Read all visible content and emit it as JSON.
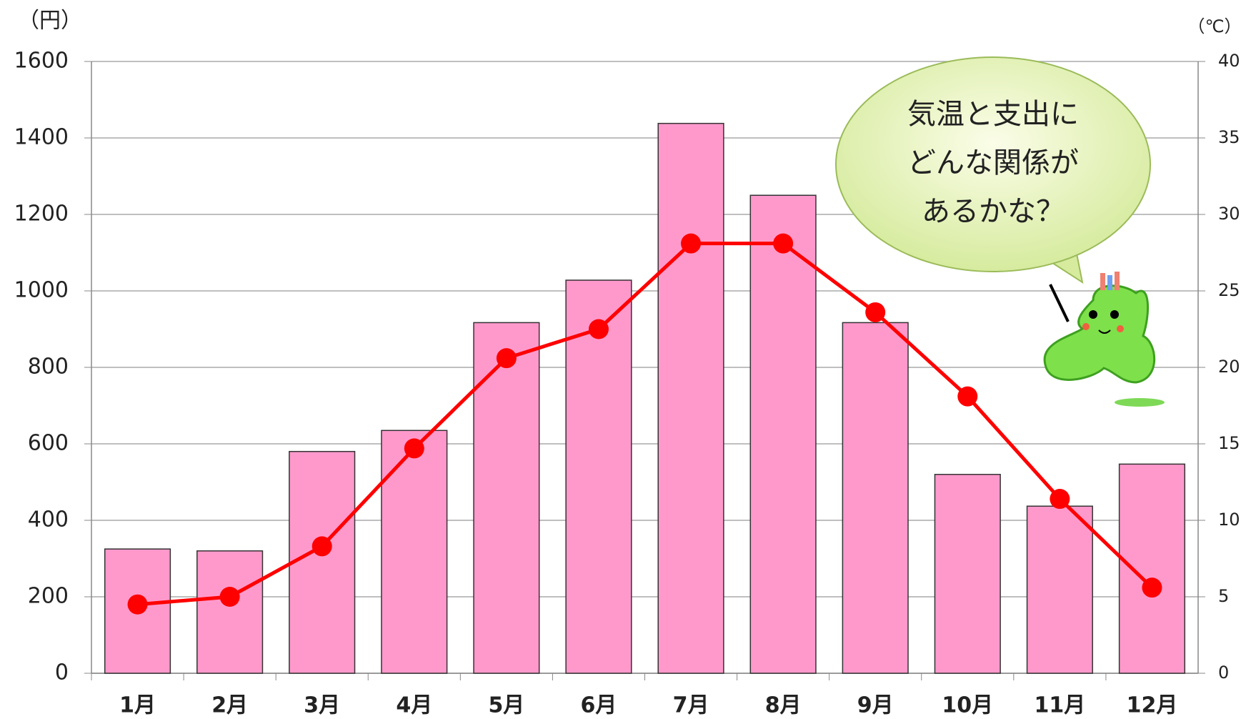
{
  "chart_data": {
    "type": "bar_line",
    "y_unit": "（円）",
    "y2_unit": "（℃）",
    "categories": [
      "1月",
      "2月",
      "3月",
      "4月",
      "5月",
      "6月",
      "7月",
      "8月",
      "9月",
      "10月",
      "11月",
      "12月"
    ],
    "series": [
      {
        "type": "bar",
        "color": "#ff99cc",
        "values": [
          325,
          320,
          580,
          635,
          917,
          1028,
          1438,
          1250,
          917,
          520,
          437,
          547
        ]
      },
      {
        "type": "line",
        "color": "#ff0000",
        "axis": "y2",
        "values": [
          4.5,
          5.0,
          8.3,
          14.7,
          20.6,
          22.5,
          28.1,
          28.1,
          23.6,
          18.1,
          11.4,
          5.6
        ]
      }
    ],
    "ylim": [
      0,
      1600
    ],
    "yticks": [
      0,
      200,
      400,
      600,
      800,
      1000,
      1200,
      1400,
      1600
    ],
    "y2lim": [
      0,
      40
    ],
    "y2ticks": [
      0,
      5,
      10,
      15,
      20,
      25,
      30,
      35,
      40
    ],
    "grid": true,
    "annotation": [
      "気温と支出に",
      "どんな関係が",
      "あるかな？"
    ]
  }
}
